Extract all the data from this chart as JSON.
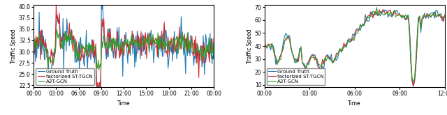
{
  "left": {
    "ylim": [
      22.0,
      40.5
    ],
    "yticks": [
      22.5,
      25.0,
      27.5,
      30.0,
      32.5,
      35.0,
      37.5,
      40.0
    ],
    "xtick_labels": [
      "00:00",
      "03:00",
      "06:00",
      "09:00",
      "12:00",
      "15:00",
      "18:00",
      "21:00",
      "00:00"
    ],
    "xlabel": "Time",
    "ylabel": "Traffic Speed",
    "legend_labels": [
      "A3T-GCN",
      "factorized ST-TGCN",
      "Ground Truth"
    ],
    "legend_colors": [
      "#2ca02c",
      "#d62728",
      "#1f77b4"
    ]
  },
  "right": {
    "ylim": [
      8.0,
      72.0
    ],
    "yticks": [
      10,
      20,
      30,
      40,
      50,
      60,
      70
    ],
    "xtick_labels": [
      "00:00",
      "03:00",
      "06:00",
      "09:00",
      "12:00"
    ],
    "xlabel": "Time",
    "ylabel": "Traffic Speed",
    "legend_labels": [
      "A3T-GCN",
      "factorized ST-TGCN",
      "Ground Truth"
    ],
    "legend_colors": [
      "#2ca02c",
      "#d62728",
      "#1f77b4"
    ]
  },
  "background_color": "#ffffff",
  "line_width": 0.8,
  "font_size": 5.5
}
